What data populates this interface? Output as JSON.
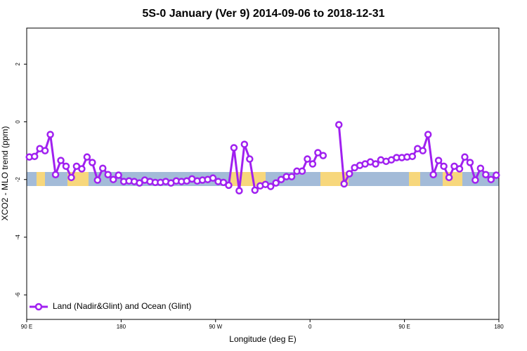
{
  "chart_data": {
    "type": "line",
    "title": "5S-0 January (Ver 9)   2014-09-06 to 2018-12-31",
    "xlabel": "Longitude (deg E)",
    "ylabel": "XCO2 - MLO trend (ppm)",
    "xlim": [
      90,
      540
    ],
    "xticks": [
      {
        "value": 90,
        "label": "90 E"
      },
      180,
      {
        "value": 270,
        "label": "90 W"
      },
      {
        "value": 360,
        "label": "0"
      },
      {
        "value": 450,
        "label": "90 E"
      },
      {
        "value": 540,
        "label": "180"
      }
    ],
    "ylim": [
      -6.85,
      3.25
    ],
    "yticks": [
      2,
      0,
      -2,
      -4,
      -6
    ],
    "legend": "bottom-left",
    "x": [
      92.5,
      97.5,
      102.5,
      107.5,
      112.5,
      117.5,
      122.5,
      127.5,
      132.5,
      137.5,
      142.5,
      147.5,
      152.5,
      157.5,
      162.5,
      167.5,
      172.5,
      177.5,
      182.5,
      187.5,
      192.5,
      197.5,
      202.5,
      207.5,
      212.5,
      217.5,
      222.5,
      227.5,
      232.5,
      237.5,
      242.5,
      247.5,
      252.5,
      257.5,
      262.5,
      267.5,
      272.5,
      277.5,
      282.5,
      287.5,
      292.5,
      297.5,
      302.5,
      307.5,
      312.5,
      317.5,
      322.5,
      327.5,
      332.5,
      337.5,
      342.5,
      347.5,
      352.5,
      357.5,
      362.5,
      367.5,
      372.5,
      377.5,
      382.5,
      387.5,
      392.5,
      397.5,
      402.5,
      407.5,
      412.5,
      417.5,
      422.5,
      427.5,
      432.5,
      437.5,
      442.5,
      447.5,
      452.5,
      457.5,
      462.5,
      467.5,
      472.5,
      477.5,
      482.5,
      487.5,
      492.5,
      497.5,
      502.5,
      507.5,
      512.5,
      517.5,
      522.5,
      527.5,
      532.5,
      537.5
    ],
    "series": [
      {
        "name": "Land (Nadir&Glint) and Ocean (Glint)",
        "color": "#a020f0",
        "values": [
          -1.22,
          -1.2,
          -0.93,
          -1.0,
          -0.44,
          -1.83,
          -1.34,
          -1.54,
          -1.93,
          -1.54,
          -1.63,
          -1.22,
          -1.41,
          -2.02,
          -1.61,
          -1.83,
          -2.0,
          -1.85,
          -2.07,
          -2.05,
          -2.07,
          -2.12,
          -2.02,
          -2.07,
          -2.1,
          -2.1,
          -2.07,
          -2.12,
          -2.05,
          -2.07,
          -2.05,
          -1.98,
          -2.05,
          -2.02,
          -2.0,
          -1.95,
          -2.07,
          -2.1,
          -2.2,
          -0.9,
          -2.39,
          -0.78,
          -1.29,
          -2.37,
          -2.22,
          -2.17,
          -2.24,
          -2.12,
          -2.0,
          -1.9,
          -1.9,
          -1.71,
          -1.71,
          -1.29,
          -1.46,
          -1.07,
          -1.17,
          null,
          null,
          -0.1,
          -2.15,
          -1.8,
          -1.59,
          -1.51,
          -1.46,
          -1.39,
          -1.46,
          -1.32,
          -1.37,
          -1.32,
          -1.24,
          -1.24,
          -1.22,
          -1.2,
          -0.93,
          -1.0,
          -0.44,
          -1.83,
          -1.34,
          -1.54,
          -1.93,
          -1.54,
          -1.63,
          -1.22,
          -1.41,
          -2.02,
          -1.61,
          -1.83,
          -2.0,
          -1.85
        ]
      }
    ]
  }
}
